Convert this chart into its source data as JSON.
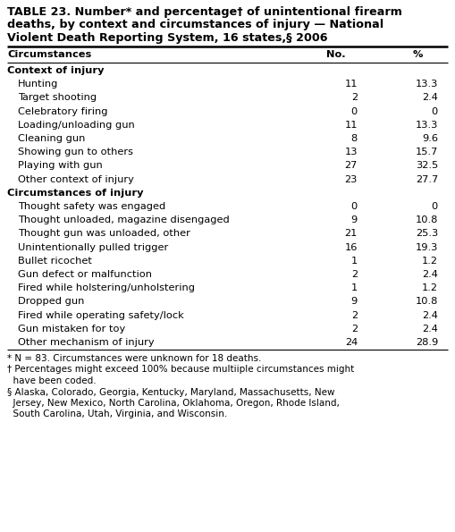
{
  "title_line1": "TABLE 23. Number* and percentage† of unintentional firearm",
  "title_line2": "deaths, by context and circumstances of injury — National",
  "title_line3": "Violent Death Reporting System, 16 states,§ 2006",
  "col_header": [
    "Circumstances",
    "No.",
    "%"
  ],
  "rows": [
    {
      "label": "Context of injury",
      "no": "",
      "pct": "",
      "bold": true,
      "indent": false
    },
    {
      "label": "Hunting",
      "no": "11",
      "pct": "13.3",
      "bold": false,
      "indent": true
    },
    {
      "label": "Target shooting",
      "no": "2",
      "pct": "2.4",
      "bold": false,
      "indent": true
    },
    {
      "label": "Celebratory firing",
      "no": "0",
      "pct": "0",
      "bold": false,
      "indent": true
    },
    {
      "label": "Loading/unloading gun",
      "no": "11",
      "pct": "13.3",
      "bold": false,
      "indent": true
    },
    {
      "label": "Cleaning gun",
      "no": "8",
      "pct": "9.6",
      "bold": false,
      "indent": true
    },
    {
      "label": "Showing gun to others",
      "no": "13",
      "pct": "15.7",
      "bold": false,
      "indent": true
    },
    {
      "label": "Playing with gun",
      "no": "27",
      "pct": "32.5",
      "bold": false,
      "indent": true
    },
    {
      "label": "Other context of injury",
      "no": "23",
      "pct": "27.7",
      "bold": false,
      "indent": true
    },
    {
      "label": "Circumstances of injury",
      "no": "",
      "pct": "",
      "bold": true,
      "indent": false
    },
    {
      "label": "Thought safety was engaged",
      "no": "0",
      "pct": "0",
      "bold": false,
      "indent": true
    },
    {
      "label": "Thought unloaded, magazine disengaged",
      "no": "9",
      "pct": "10.8",
      "bold": false,
      "indent": true
    },
    {
      "label": "Thought gun was unloaded, other",
      "no": "21",
      "pct": "25.3",
      "bold": false,
      "indent": true
    },
    {
      "label": "Unintentionally pulled trigger",
      "no": "16",
      "pct": "19.3",
      "bold": false,
      "indent": true
    },
    {
      "label": "Bullet ricochet",
      "no": "1",
      "pct": "1.2",
      "bold": false,
      "indent": true
    },
    {
      "label": "Gun defect or malfunction",
      "no": "2",
      "pct": "2.4",
      "bold": false,
      "indent": true
    },
    {
      "label": "Fired while holstering/unholstering",
      "no": "1",
      "pct": "1.2",
      "bold": false,
      "indent": true
    },
    {
      "label": "Dropped gun",
      "no": "9",
      "pct": "10.8",
      "bold": false,
      "indent": true
    },
    {
      "label": "Fired while operating safety/lock",
      "no": "2",
      "pct": "2.4",
      "bold": false,
      "indent": true
    },
    {
      "label": "Gun mistaken for toy",
      "no": "2",
      "pct": "2.4",
      "bold": false,
      "indent": true
    },
    {
      "label": "Other mechanism of injury",
      "no": "24",
      "pct": "28.9",
      "bold": false,
      "indent": true
    }
  ],
  "footnote1": "* N = 83. Circumstances were unknown for 18 deaths.",
  "footnote2a": "† Percentages might exceed 100% because multiiple circumstances might",
  "footnote2b": "  have been coded.",
  "footnote3a": "§ Alaska, Colorado, Georgia, Kentucky, Maryland, Massachusetts, New",
  "footnote3b": "  Jersey, New Mexico, North Carolina, Oklahoma, Oregon, Rhode Island,",
  "footnote3c": "  South Carolina, Utah, Virginia, and Wisconsin.",
  "bg_color": "#ffffff",
  "text_color": "#000000",
  "font_size": 8.2,
  "title_font_size": 9.2,
  "fn_font_size": 7.5
}
